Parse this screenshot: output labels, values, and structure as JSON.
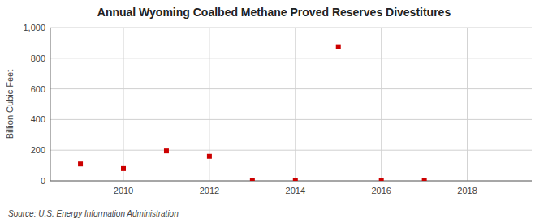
{
  "chart_data": {
    "type": "scatter",
    "title": "Annual Wyoming Coalbed Methane Proved Reserves Divestitures",
    "y_label": "Billion Cubic Feet",
    "annotations": [
      "Source: U.S. Energy Information Administration"
    ],
    "x": [
      2009,
      2010,
      2011,
      2012,
      2013,
      2014,
      2015,
      2016,
      2017
    ],
    "values": [
      110,
      80,
      195,
      160,
      3,
      3,
      875,
      2,
      5
    ],
    "color": "#cc0000",
    "marker": "square",
    "xlim": [
      2008.3,
      2019.5
    ],
    "ylim": [
      0,
      1000
    ],
    "xticks": [
      2010,
      2012,
      2014,
      2016,
      2018
    ],
    "yticks": [
      0,
      200,
      400,
      600,
      800,
      {
        "value": 1000,
        "label": "1,000"
      }
    ],
    "grid": true
  }
}
